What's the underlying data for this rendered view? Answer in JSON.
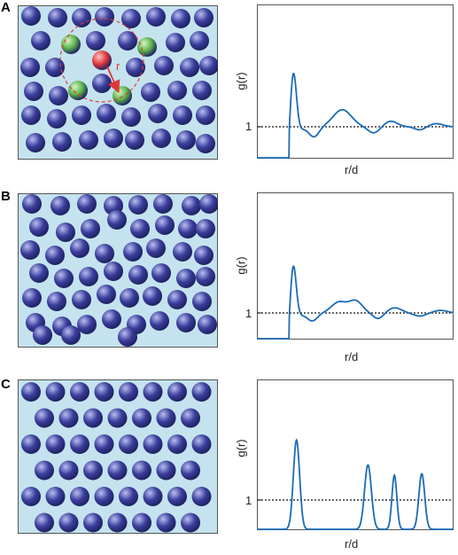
{
  "panels": [
    {
      "letter": "A",
      "state": "liquid",
      "highlight": {
        "reference_color": "#e0383a",
        "neighbor_color": "#5cb54a",
        "arrow_label": "r"
      },
      "plot": {
        "ylabel": "g(r)",
        "xlabel": "r/d",
        "reference_tick": "1"
      }
    },
    {
      "letter": "B",
      "state": "liquid",
      "plot": {
        "ylabel": "g(r)",
        "xlabel": "r/d",
        "reference_tick": "1"
      }
    },
    {
      "letter": "C",
      "state": "crystal",
      "plot": {
        "ylabel": "g(r)",
        "xlabel": "r/d",
        "reference_tick": "1"
      }
    }
  ],
  "colors": {
    "box_fill": "#c4e3ef",
    "particle": "#3a3e9c",
    "particle_highlight": "#b9bdf0",
    "curve": "#1a6bb6"
  }
}
